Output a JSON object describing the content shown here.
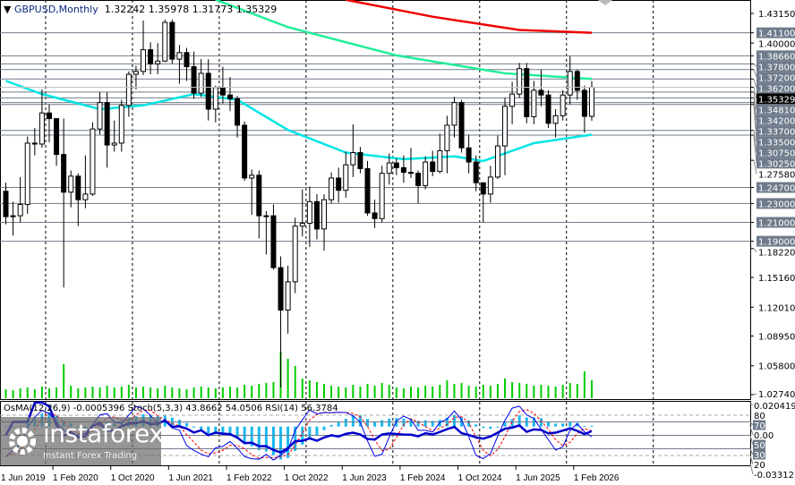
{
  "header": {
    "symbol": "GBPUSD,Monthly",
    "open": "1.32242",
    "high": "1.35978",
    "low": "1.31773",
    "close": "1.35329"
  },
  "indicator_header": "OsMA(12,26,9) -0.0005396  Stoch(5,3,3) 43.8662 54.0506  RSI(14) 56.3784",
  "watermark": {
    "brand": "instaforex",
    "tagline": "Instant Forex Trading"
  },
  "colors": {
    "bull": "#ffffff",
    "bear": "#000000",
    "ma_fast": "#00e5e5",
    "ma_mid": "#22ee99",
    "ma_slow": "#ee0000",
    "volume": "#00cc00",
    "osma": "#1ab8f0",
    "stoch_main": "#0000ee",
    "stoch_signal": "#ff0000",
    "rsi": "#0000cc",
    "level_label_bg": "#6f7b8b"
  },
  "chart_data": {
    "type": "candlestick",
    "symbol": "GBPUSD",
    "timeframe": "Monthly",
    "start": "2019-07",
    "ylim": [
      1.0274,
      1.4315
    ],
    "price_ticks": [
      "1.43150",
      "1.40000",
      "1.27580",
      "1.18220",
      "1.15160",
      "1.12010",
      "1.08950",
      "1.05800",
      "1.02740"
    ],
    "levels": [
      "1.41100",
      "1.38660",
      "1.37800",
      "1.37200",
      "1.36200",
      "1.34810",
      "1.34200",
      "1.33700",
      "1.33500",
      "1.30750",
      "1.30250",
      "1.24700",
      "1.23000",
      "1.21000",
      "1.19000"
    ],
    "current_price": "1.35329",
    "time_labels": [
      [
        "2019-06",
        "1 Jun 2019"
      ],
      [
        "2020-02",
        "1 Feb 2020"
      ],
      [
        "2020-10",
        "1 Oct 2020"
      ],
      [
        "2021-06",
        "1 Jun 2021"
      ],
      [
        "2022-02",
        "1 Feb 2022"
      ],
      [
        "2022-10",
        "1 Oct 2022"
      ],
      [
        "2023-06",
        "1 Jun 2023"
      ],
      [
        "2024-02",
        "1 Feb 2024"
      ],
      [
        "2024-10",
        "1 Oct 2024"
      ],
      [
        "2025-06",
        "1 Jun 2025"
      ],
      [
        "2026-02",
        "1 Feb 2026"
      ]
    ],
    "year_separators": [
      "2020-01",
      "2021-01",
      "2022-01",
      "2023-01",
      "2024-01",
      "2025-01",
      "2026-01",
      "2027-01"
    ],
    "ohlc": [
      [
        1.243,
        1.252,
        1.208,
        1.216
      ],
      [
        1.216,
        1.232,
        1.196,
        1.217
      ],
      [
        1.217,
        1.258,
        1.21,
        1.229
      ],
      [
        1.229,
        1.301,
        1.219,
        1.294
      ],
      [
        1.294,
        1.31,
        1.281,
        1.293
      ],
      [
        1.293,
        1.351,
        1.289,
        1.326
      ],
      [
        1.326,
        1.335,
        1.295,
        1.32
      ],
      [
        1.32,
        1.32,
        1.27,
        1.282
      ],
      [
        1.282,
        1.32,
        1.141,
        1.242
      ],
      [
        1.242,
        1.265,
        1.226,
        1.259
      ],
      [
        1.259,
        1.262,
        1.206,
        1.234
      ],
      [
        1.234,
        1.281,
        1.225,
        1.24
      ],
      [
        1.24,
        1.316,
        1.238,
        1.309
      ],
      [
        1.309,
        1.348,
        1.303,
        1.337
      ],
      [
        1.337,
        1.348,
        1.268,
        1.292
      ],
      [
        1.292,
        1.318,
        1.285,
        1.294
      ],
      [
        1.294,
        1.34,
        1.285,
        1.334
      ],
      [
        1.334,
        1.37,
        1.322,
        1.367
      ],
      [
        1.367,
        1.376,
        1.351,
        1.37
      ],
      [
        1.37,
        1.424,
        1.366,
        1.393
      ],
      [
        1.393,
        1.401,
        1.367,
        1.378
      ],
      [
        1.378,
        1.4,
        1.367,
        1.381
      ],
      [
        1.381,
        1.425,
        1.38,
        1.422
      ],
      [
        1.422,
        1.425,
        1.378,
        1.383
      ],
      [
        1.383,
        1.398,
        1.357,
        1.39
      ],
      [
        1.39,
        1.395,
        1.36,
        1.375
      ],
      [
        1.375,
        1.391,
        1.341,
        1.347
      ],
      [
        1.347,
        1.383,
        1.343,
        1.368
      ],
      [
        1.368,
        1.383,
        1.318,
        1.33
      ],
      [
        1.33,
        1.355,
        1.316,
        1.353
      ],
      [
        1.353,
        1.375,
        1.336,
        1.345
      ],
      [
        1.345,
        1.364,
        1.328,
        1.341
      ],
      [
        1.341,
        1.344,
        1.3,
        1.313
      ],
      [
        1.313,
        1.317,
        1.254,
        1.257
      ],
      [
        1.257,
        1.266,
        1.218,
        1.26
      ],
      [
        1.26,
        1.265,
        1.193,
        1.217
      ],
      [
        1.217,
        1.222,
        1.176,
        1.217
      ],
      [
        1.217,
        1.229,
        1.16,
        1.162
      ],
      [
        1.162,
        1.174,
        1.035,
        1.117
      ],
      [
        1.117,
        1.164,
        1.092,
        1.147
      ],
      [
        1.147,
        1.215,
        1.135,
        1.206
      ],
      [
        1.206,
        1.245,
        1.195,
        1.209
      ],
      [
        1.209,
        1.248,
        1.184,
        1.232
      ],
      [
        1.232,
        1.24,
        1.192,
        1.203
      ],
      [
        1.203,
        1.24,
        1.18,
        1.234
      ],
      [
        1.234,
        1.263,
        1.23,
        1.257
      ],
      [
        1.257,
        1.268,
        1.231,
        1.244
      ],
      [
        1.244,
        1.285,
        1.236,
        1.271
      ],
      [
        1.271,
        1.314,
        1.258,
        1.284
      ],
      [
        1.284,
        1.29,
        1.262,
        1.267
      ],
      [
        1.267,
        1.275,
        1.217,
        1.22
      ],
      [
        1.22,
        1.234,
        1.204,
        1.214
      ],
      [
        1.214,
        1.27,
        1.21,
        1.262
      ],
      [
        1.262,
        1.283,
        1.25,
        1.273
      ],
      [
        1.273,
        1.278,
        1.26,
        1.268
      ],
      [
        1.268,
        1.281,
        1.252,
        1.263
      ],
      [
        1.263,
        1.289,
        1.257,
        1.262
      ],
      [
        1.262,
        1.265,
        1.23,
        1.249
      ],
      [
        1.249,
        1.28,
        1.245,
        1.274
      ],
      [
        1.274,
        1.286,
        1.259,
        1.264
      ],
      [
        1.264,
        1.304,
        1.262,
        1.286
      ],
      [
        1.286,
        1.323,
        1.262,
        1.313
      ],
      [
        1.313,
        1.343,
        1.3,
        1.337
      ],
      [
        1.337,
        1.34,
        1.284,
        1.289
      ],
      [
        1.289,
        1.303,
        1.262,
        1.274
      ],
      [
        1.274,
        1.281,
        1.243,
        1.252
      ],
      [
        1.252,
        1.252,
        1.21,
        1.24
      ],
      [
        1.24,
        1.27,
        1.231,
        1.258
      ],
      [
        1.258,
        1.302,
        1.256,
        1.291
      ],
      [
        1.291,
        1.342,
        1.26,
        1.333
      ],
      [
        1.333,
        1.359,
        1.314,
        1.346
      ],
      [
        1.346,
        1.379,
        1.342,
        1.373
      ],
      [
        1.373,
        1.379,
        1.315,
        1.322
      ],
      [
        1.322,
        1.36,
        1.314,
        1.35
      ],
      [
        1.35,
        1.372,
        1.333,
        1.345
      ],
      [
        1.345,
        1.35,
        1.31,
        1.315
      ],
      [
        1.315,
        1.33,
        1.3,
        1.323
      ],
      [
        1.323,
        1.35,
        1.318,
        1.345
      ],
      [
        1.345,
        1.386,
        1.335,
        1.37
      ],
      [
        1.37,
        1.372,
        1.34,
        1.35
      ],
      [
        1.35,
        1.355,
        1.305,
        1.3224
      ],
      [
        1.32242,
        1.35978,
        1.31773,
        1.35329
      ]
    ],
    "volume": [
      10,
      9,
      11,
      12,
      10,
      13,
      11,
      12,
      38,
      14,
      11,
      12,
      13,
      12,
      14,
      12,
      13,
      15,
      12,
      13,
      12,
      11,
      14,
      12,
      11,
      10,
      12,
      13,
      12,
      11,
      12,
      13,
      12,
      15,
      14,
      16,
      17,
      18,
      52,
      44,
      36,
      22,
      20,
      18,
      16,
      14,
      13,
      12,
      15,
      13,
      16,
      14,
      17,
      15,
      12,
      11,
      13,
      12,
      14,
      13,
      15,
      20,
      16,
      17,
      14,
      13,
      15,
      14,
      16,
      22,
      18,
      17,
      16,
      14,
      15,
      14,
      13,
      15,
      17,
      16,
      30,
      20
    ],
    "ma_fast": [
      [
        "2019-07",
        1.36
      ],
      [
        "2019-12",
        1.346
      ],
      [
        "2020-08",
        1.33
      ],
      [
        "2021-02",
        1.334
      ],
      [
        "2021-09",
        1.346
      ],
      [
        "2022-03",
        1.34
      ],
      [
        "2022-10",
        1.308
      ],
      [
        "2023-06",
        1.284
      ],
      [
        "2024-02",
        1.277
      ],
      [
        "2024-09",
        1.28
      ],
      [
        "2025-01",
        1.275
      ],
      [
        "2025-08",
        1.294
      ],
      [
        "2026-04",
        1.303
      ]
    ],
    "ma_mid": [
      [
        "2021-12",
        1.446
      ],
      [
        "2022-10",
        1.417
      ],
      [
        "2024-01",
        1.387
      ],
      [
        "2025-04",
        1.368
      ],
      [
        "2026-04",
        1.362
      ]
    ],
    "ma_slow": [
      [
        "2023-06",
        1.446
      ],
      [
        "2024-06",
        1.428
      ],
      [
        "2025-06",
        1.414
      ],
      [
        "2026-04",
        1.411
      ]
    ],
    "osc_levels": [
      "80",
      "70",
      "50",
      "30",
      "20"
    ],
    "osma_range": [
      "0.020419",
      "0.00",
      "-0.03312"
    ]
  }
}
